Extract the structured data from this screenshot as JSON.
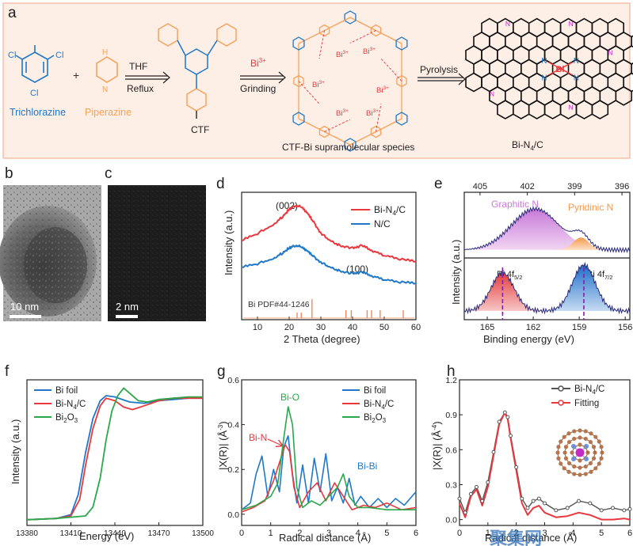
{
  "panel_a": {
    "letter": "a",
    "trichlorazine": "Trichlorazine",
    "piperazine": "Piperazine",
    "plus": "+",
    "cond1_top": "THF",
    "cond1_bottom": "Reflux",
    "ctf": "CTF",
    "bi3plus": "Bi",
    "bi3plus_sup": "3+",
    "grinding": "Grinding",
    "supramolecular": "CTF-Bi supramolecular species",
    "pyrolysis": "Pyrolysis",
    "product_main": "Bi-N",
    "product_sub": "4",
    "product_tail": "/C",
    "atom_cl": "Cl",
    "atom_n": "N",
    "atom_h": "H",
    "atom_bi": "Bi",
    "atom_bi_sup": "3+"
  },
  "panel_b": {
    "letter": "b",
    "scale": "10 nm"
  },
  "panel_c": {
    "letter": "c",
    "scale": "2 nm"
  },
  "panel_d": {
    "letter": "d",
    "ylabel": "Intensity (a.u.)",
    "xlabel": "2 Theta (degree)",
    "peak1": "(002)",
    "peak2": "(100)",
    "pdf_label": "Bi  PDF#44-1246"
  },
  "panel_e": {
    "letter": "e",
    "xlabel": "Binding energy (eV)",
    "ylabel": "Intensity (a.u.)",
    "graphitic": "Graphitic N",
    "pyridinic": "Pyridinic N",
    "bi5": "Bi 4f",
    "bi5_sub": "5/2",
    "bi7": "Bi 4f",
    "bi7_sub": "7/2"
  },
  "panel_f": {
    "letter": "f",
    "xlabel": "Energy (eV)",
    "ylabel": "Intensity (a.u.)"
  },
  "panel_g": {
    "letter": "g",
    "xlabel": "Radical distance (Å)",
    "ylabel": "|X(R)| (Å",
    "ylabel_sup": "-3",
    "ylabel_tail": ")",
    "ann_bio": "Bi-O",
    "ann_bin": "Bi-N",
    "ann_bibi": "Bi-Bi"
  },
  "panel_h": {
    "letter": "h",
    "xlabel": "Radical distance (Å)",
    "ylabel": "|X(R)| (Å",
    "ylabel_sup": "-4",
    "ylabel_tail": ")"
  },
  "watermark": "聚集网",
  "colors": {
    "red": "#e8383d",
    "blue": "#1f78c8",
    "green": "#2aa84a",
    "gray": "#555555",
    "pink": "#e8a3d8",
    "orange": "#f5a35c"
  },
  "chart_data": [
    {
      "id": "d",
      "type": "line",
      "xlim": [
        5,
        60
      ],
      "xticks": [
        "10",
        "20",
        "30",
        "40",
        "50",
        "60"
      ],
      "series": [
        {
          "name": "Bi-N4/C",
          "color": "red",
          "x": [
            5,
            10,
            15,
            18,
            20,
            22,
            24,
            26,
            28,
            30,
            33,
            36,
            40,
            43,
            46,
            50,
            55,
            60
          ],
          "y": [
            0.6,
            0.66,
            0.73,
            0.8,
            0.86,
            0.89,
            0.88,
            0.82,
            0.74,
            0.66,
            0.6,
            0.56,
            0.54,
            0.56,
            0.52,
            0.48,
            0.45,
            0.43
          ]
        },
        {
          "name": "N/C",
          "color": "blue",
          "x": [
            5,
            10,
            15,
            18,
            20,
            22,
            24,
            26,
            28,
            30,
            33,
            36,
            40,
            43,
            46,
            50,
            55,
            60
          ],
          "y": [
            0.38,
            0.41,
            0.45,
            0.5,
            0.54,
            0.56,
            0.55,
            0.51,
            0.46,
            0.42,
            0.38,
            0.35,
            0.33,
            0.34,
            0.31,
            0.28,
            0.26,
            0.25
          ]
        }
      ],
      "legend": [
        {
          "text": "Bi-N",
          "sub": "4",
          "tail": "/C",
          "color": "red"
        },
        {
          "text": "N/C",
          "sub": "",
          "tail": "",
          "color": "blue"
        }
      ],
      "reference_sticks": [
        22.5,
        23.8,
        27.2,
        37.9,
        39.6,
        44.6,
        46.0,
        48.7,
        56.0
      ]
    },
    {
      "id": "e",
      "type": "area",
      "xlim": [
        406,
        395.5
      ],
      "xticks_top": [
        "405",
        "402",
        "399",
        "396"
      ],
      "xlim_bottom": [
        166.5,
        155.7
      ],
      "xticks_bottom": [
        "165",
        "162",
        "159",
        "156"
      ]
    },
    {
      "id": "f",
      "type": "line",
      "xlim": [
        13380,
        13500
      ],
      "xticks": [
        "13380",
        "13410",
        "13440",
        "13470",
        "13500"
      ],
      "series": [
        {
          "name": "Bi foil",
          "color": "blue",
          "x": [
            13380,
            13400,
            13410,
            13415,
            13420,
            13425,
            13430,
            13434,
            13440,
            13450,
            13460,
            13470,
            13480,
            13490,
            13500
          ],
          "y": [
            0.02,
            0.03,
            0.06,
            0.22,
            0.55,
            0.82,
            0.96,
            1.0,
            0.99,
            0.95,
            0.94,
            0.96,
            0.97,
            0.98,
            0.98
          ]
        },
        {
          "name": "Bi-N4/C",
          "color": "red",
          "x": [
            13380,
            13400,
            13410,
            13416,
            13420,
            13425,
            13430,
            13434,
            13440,
            13446,
            13452,
            13460,
            13470,
            13480,
            13490,
            13500
          ],
          "y": [
            0.02,
            0.03,
            0.05,
            0.18,
            0.45,
            0.74,
            0.92,
            0.98,
            0.96,
            0.91,
            0.89,
            0.92,
            0.96,
            0.98,
            0.98,
            0.98
          ]
        },
        {
          "name": "Bi2O3",
          "color": "green",
          "x": [
            13380,
            13400,
            13420,
            13425,
            13430,
            13434,
            13438,
            13442,
            13446,
            13450,
            13456,
            13462,
            13470,
            13480,
            13490,
            13500
          ],
          "y": [
            0.02,
            0.03,
            0.05,
            0.12,
            0.35,
            0.65,
            0.88,
            1.0,
            1.06,
            1.02,
            0.96,
            0.95,
            0.97,
            0.98,
            0.99,
            0.99
          ]
        }
      ],
      "legend": [
        {
          "text": "Bi foil",
          "sub": "",
          "tail": "",
          "color": "blue"
        },
        {
          "text": "Bi-N",
          "sub": "4",
          "tail": "/C",
          "color": "red"
        },
        {
          "text": "Bi",
          "sub": "2",
          "tail": "O",
          "sub2": "3",
          "color": "green"
        }
      ]
    },
    {
      "id": "g",
      "type": "line",
      "xlim": [
        0,
        6
      ],
      "xticks": [
        "0",
        "1",
        "2",
        "3",
        "4",
        "5",
        "6"
      ],
      "ylim": [
        -0.05,
        0.6
      ],
      "yticks": [
        "0.0",
        "0.2",
        "0.4",
        "0.6"
      ],
      "series": [
        {
          "name": "Bi foil",
          "color": "blue",
          "x": [
            0,
            0.3,
            0.5,
            0.7,
            0.9,
            1.1,
            1.3,
            1.45,
            1.6,
            1.75,
            1.9,
            2.1,
            2.3,
            2.5,
            2.7,
            2.9,
            3.1,
            3.3,
            3.5,
            3.7,
            3.9,
            4.1,
            4.4,
            4.7,
            5.0,
            5.3,
            5.6,
            6.0
          ],
          "y": [
            0.02,
            0.05,
            0.18,
            0.26,
            0.08,
            0.2,
            0.1,
            0.3,
            0.35,
            0.18,
            0.05,
            0.22,
            0.05,
            0.25,
            0.1,
            0.27,
            0.06,
            0.12,
            0.05,
            0.16,
            0.04,
            0.08,
            0.03,
            0.07,
            0.03,
            0.07,
            0.04,
            0.1
          ]
        },
        {
          "name": "Bi-N4/C",
          "color": "red",
          "x": [
            0,
            0.4,
            0.8,
            1.1,
            1.35,
            1.5,
            1.65,
            1.8,
            2.0,
            2.3,
            2.6,
            2.9,
            3.2,
            3.5,
            3.8,
            4.2,
            4.6,
            5.0,
            5.5,
            6.0
          ],
          "y": [
            0.01,
            0.03,
            0.06,
            0.15,
            0.25,
            0.31,
            0.28,
            0.12,
            0.03,
            0.1,
            0.14,
            0.06,
            0.14,
            0.08,
            0.02,
            0.04,
            0.03,
            0.05,
            0.02,
            0.03
          ]
        },
        {
          "name": "Bi2O3",
          "color": "green",
          "x": [
            0,
            0.5,
            1.0,
            1.25,
            1.45,
            1.6,
            1.75,
            1.9,
            2.1,
            2.4,
            2.7,
            3.0,
            3.3,
            3.5,
            3.7,
            4.0,
            4.4,
            5.0,
            5.5,
            6.0
          ],
          "y": [
            0.02,
            0.04,
            0.08,
            0.14,
            0.34,
            0.48,
            0.4,
            0.12,
            0.03,
            0.06,
            0.04,
            0.08,
            0.12,
            0.18,
            0.08,
            0.03,
            0.03,
            0.02,
            0.02,
            0.02
          ]
        }
      ],
      "legend": [
        {
          "text": "Bi foil",
          "sub": "",
          "tail": "",
          "color": "blue"
        },
        {
          "text": "Bi-N",
          "sub": "4",
          "tail": "/C",
          "color": "red"
        },
        {
          "text": "Bi",
          "sub": "2",
          "tail": "O",
          "sub2": "3",
          "color": "green"
        }
      ]
    },
    {
      "id": "h",
      "type": "line",
      "xlim": [
        0,
        6
      ],
      "xticks": [
        "0",
        "1",
        "2",
        "3",
        "4",
        "5",
        "6"
      ],
      "ylim": [
        -0.05,
        1.2
      ],
      "yticks": [
        "0.0",
        "0.3",
        "0.6",
        "0.9",
        "1.2"
      ],
      "series": [
        {
          "name": "Bi-N4/C",
          "color": "gray",
          "x": [
            0,
            0.2,
            0.4,
            0.6,
            0.8,
            1.0,
            1.2,
            1.4,
            1.6,
            1.7,
            1.8,
            2.0,
            2.2,
            2.4,
            2.6,
            2.8,
            3.0,
            3.4,
            3.8,
            4.2,
            4.6,
            5.0,
            5.4,
            5.8,
            6.0
          ],
          "y": [
            0.18,
            0.06,
            0.22,
            0.28,
            0.16,
            0.32,
            0.58,
            0.84,
            0.92,
            0.88,
            0.72,
            0.45,
            0.18,
            0.1,
            0.16,
            0.18,
            0.14,
            0.08,
            0.1,
            0.16,
            0.14,
            0.08,
            0.1,
            0.08,
            0.09
          ]
        },
        {
          "name": "Fitting",
          "color": "red",
          "x": [
            0,
            0.2,
            0.4,
            0.6,
            0.8,
            1.0,
            1.2,
            1.4,
            1.6,
            1.7,
            1.8,
            2.0,
            2.2,
            2.4,
            2.6,
            2.8,
            3.0,
            3.4,
            3.8,
            4.2,
            4.6,
            5.0,
            5.4,
            5.8,
            6.0
          ],
          "y": [
            0.14,
            0.02,
            0.2,
            0.26,
            0.12,
            0.28,
            0.55,
            0.82,
            0.92,
            0.86,
            0.7,
            0.42,
            0.14,
            0.04,
            0.1,
            0.12,
            0.06,
            0.02,
            0.03,
            0.06,
            0.04,
            0.0,
            0.0,
            0.01,
            0.0
          ]
        }
      ],
      "legend": [
        {
          "text": "Bi-N",
          "sub": "4",
          "tail": "/C",
          "color": "gray"
        },
        {
          "text": "Fitting",
          "sub": "",
          "tail": "",
          "color": "red"
        }
      ]
    }
  ]
}
